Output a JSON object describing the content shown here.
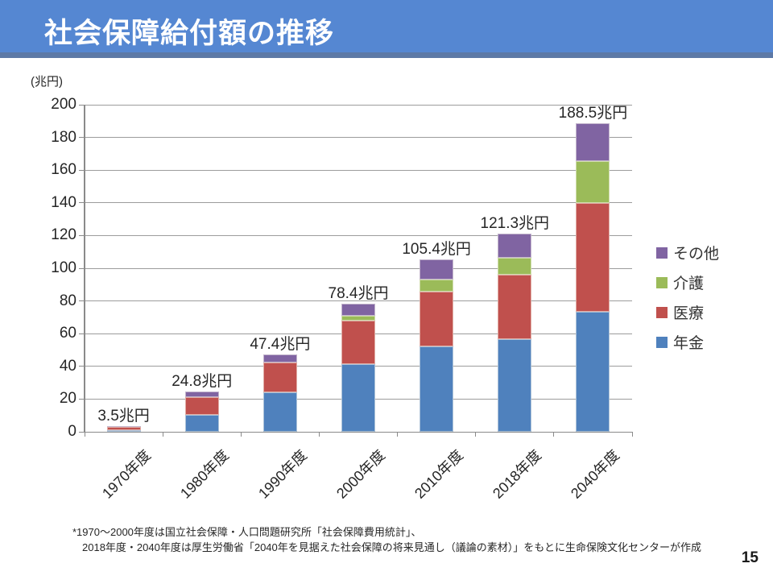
{
  "header": {
    "title": "社会保障給付額の推移"
  },
  "chart_data": {
    "type": "bar",
    "stacked": true,
    "title": "社会保障給付額の推移",
    "unit_label": "(兆円)",
    "categories": [
      "1970年度",
      "1980年度",
      "1990年度",
      "2000年度",
      "2010年度",
      "2018年度",
      "2040年度"
    ],
    "series": [
      {
        "name": "年金",
        "color": "#4F81BD",
        "values": [
          0.9,
          10.5,
          24.0,
          41.2,
          52.2,
          56.7,
          73.2
        ]
      },
      {
        "name": "医療",
        "color": "#C0504D",
        "values": [
          2.1,
          10.7,
          18.4,
          26.6,
          33.6,
          39.2,
          66.7
        ]
      },
      {
        "name": "介護",
        "color": "#9BBB59",
        "values": [
          0,
          0,
          0,
          3.3,
          7.5,
          10.7,
          25.8
        ]
      },
      {
        "name": "その他",
        "color": "#8064A2",
        "values": [
          0.5,
          3.6,
          5.0,
          7.3,
          12.1,
          14.7,
          22.8
        ]
      }
    ],
    "totals": [
      3.5,
      24.8,
      47.4,
      78.4,
      105.4,
      121.3,
      188.5
    ],
    "total_labels": [
      "3.5兆円",
      "24.8兆円",
      "47.4兆円",
      "78.4兆円",
      "105.4兆円",
      "121.3兆円",
      "188.5兆円"
    ],
    "ylim": [
      0,
      200
    ],
    "ytick_step": 20,
    "grid": true,
    "legend_position": "right",
    "legend_order": [
      "その他",
      "介護",
      "医療",
      "年金"
    ],
    "colors": {
      "gridline": "#9c9c9c",
      "axis": "#8a8a8a"
    }
  },
  "footnote": {
    "line1": "*1970～2000年度は国立社会保障・人口問題研究所「社会保障費用統計」、",
    "line2": "2018年度・2040年度は厚生労働省「2040年を見据えた社会保障の将来見通し（議論の素材）」をもとに生命保険文化センターが作成"
  },
  "page_number": "15"
}
